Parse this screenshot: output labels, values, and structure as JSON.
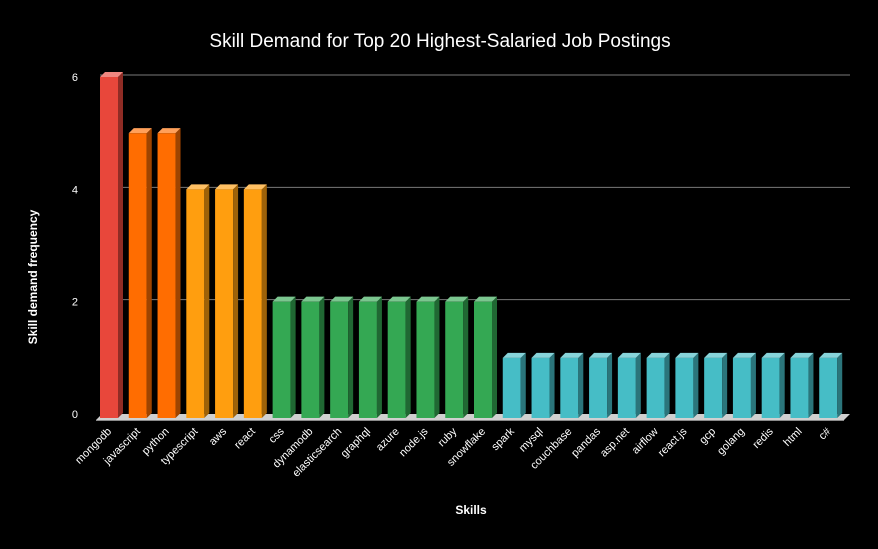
{
  "chart_data": {
    "type": "bar",
    "title": "Skill Demand for Top 20 Highest-Salaried Job Postings",
    "xlabel": "Skills",
    "ylabel": "Skill demand frequency",
    "ylim": [
      0,
      6
    ],
    "yticks": [
      "0",
      "2",
      "4",
      "6"
    ],
    "grid": true,
    "categories": [
      "mongodb",
      "javascript",
      "python",
      "typescript",
      "aws",
      "react",
      "css",
      "dynamodb",
      "elasticsearch",
      "graphql",
      "azure",
      "node.js",
      "ruby",
      "snowflake",
      "spark",
      "mysql",
      "couchbase",
      "pandas",
      "asp.net",
      "airflow",
      "react.js",
      "gcp",
      "golang",
      "redis",
      "html",
      "c#"
    ],
    "values": [
      6,
      5,
      5,
      4,
      4,
      4,
      2,
      2,
      2,
      2,
      2,
      2,
      2,
      2,
      1,
      1,
      1,
      1,
      1,
      1,
      1,
      1,
      1,
      1,
      1,
      1
    ],
    "colors": {
      "6": "#e8473b",
      "5": "#ff6d01",
      "4": "#ff9e0f",
      "2": "#34a853",
      "1": "#46bdc6"
    }
  }
}
